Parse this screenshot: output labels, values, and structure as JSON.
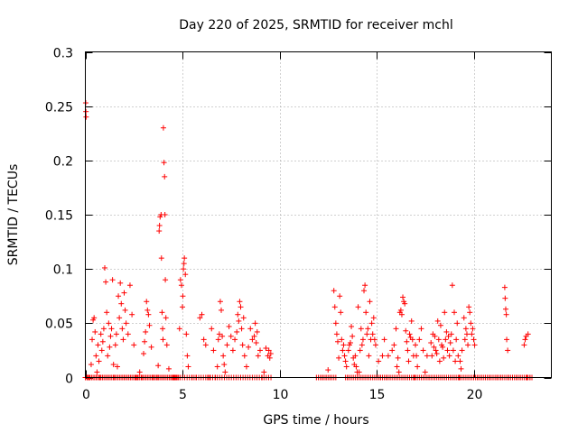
{
  "chart_data": {
    "type": "scatter",
    "title": "Day 220 of 2025, SRMTID for receiver mchl",
    "xlabel": "GPS time / hours",
    "ylabel": "SRMTID / TECUs",
    "xlim": [
      0,
      24
    ],
    "ylim": [
      0,
      0.3
    ],
    "x_ticks": [
      0,
      5,
      10,
      15,
      20
    ],
    "y_ticks": [
      0,
      0.05,
      0.1,
      0.15,
      0.2,
      0.25,
      0.3
    ],
    "x_tick_labels": [
      "0",
      "5",
      "10",
      "15",
      "20"
    ],
    "y_tick_labels": [
      "0",
      "0.05",
      "0.1",
      "0.15",
      "0.2",
      "0.25",
      "0.3"
    ],
    "grid": true,
    "marker": "+",
    "color": "#ff0000",
    "series": [
      {
        "name": "SRMTID",
        "points": [
          [
            0.02,
            0.253
          ],
          [
            0.03,
            0.245
          ],
          [
            0.04,
            0.24
          ],
          [
            0.1,
            0.0
          ],
          [
            0.2,
            0.0
          ],
          [
            0.3,
            0.012
          ],
          [
            0.35,
            0.035
          ],
          [
            0.4,
            0.053
          ],
          [
            0.45,
            0.055
          ],
          [
            0.5,
            0.042
          ],
          [
            0.55,
            0.02
          ],
          [
            0.6,
            0.005
          ],
          [
            0.65,
            0.03
          ],
          [
            0.7,
            0.015
          ],
          [
            0.75,
            0.0
          ],
          [
            0.8,
            0.04
          ],
          [
            0.85,
            0.025
          ],
          [
            0.9,
            0.033
          ],
          [
            0.95,
            0.045
          ],
          [
            1.0,
            0.101
          ],
          [
            1.05,
            0.088
          ],
          [
            1.1,
            0.06
          ],
          [
            1.15,
            0.02
          ],
          [
            1.2,
            0.05
          ],
          [
            1.25,
            0.028
          ],
          [
            1.3,
            0.038
          ],
          [
            1.35,
            0.045
          ],
          [
            1.4,
            0.09
          ],
          [
            1.45,
            0.012
          ],
          [
            1.5,
            0.0
          ],
          [
            1.55,
            0.03
          ],
          [
            1.6,
            0.04
          ],
          [
            1.65,
            0.01
          ],
          [
            1.7,
            0.075
          ],
          [
            1.75,
            0.055
          ],
          [
            1.8,
            0.087
          ],
          [
            1.85,
            0.068
          ],
          [
            1.9,
            0.045
          ],
          [
            1.95,
            0.035
          ],
          [
            2.0,
            0.078
          ],
          [
            2.05,
            0.062
          ],
          [
            2.1,
            0.05
          ],
          [
            2.2,
            0.04
          ],
          [
            2.3,
            0.085
          ],
          [
            2.4,
            0.058
          ],
          [
            2.5,
            0.03
          ],
          [
            2.6,
            0.0
          ],
          [
            2.7,
            0.0
          ],
          [
            2.8,
            0.005
          ],
          [
            2.9,
            0.0
          ],
          [
            3.0,
            0.022
          ],
          [
            3.05,
            0.033
          ],
          [
            3.1,
            0.042
          ],
          [
            3.15,
            0.07
          ],
          [
            3.2,
            0.062
          ],
          [
            3.25,
            0.058
          ],
          [
            3.3,
            0.048
          ],
          [
            3.4,
            0.028
          ],
          [
            3.5,
            0.0
          ],
          [
            3.6,
            0.0
          ],
          [
            3.7,
            0.0
          ],
          [
            3.75,
            0.011
          ],
          [
            3.8,
            0.135
          ],
          [
            3.82,
            0.14
          ],
          [
            3.85,
            0.148
          ],
          [
            3.9,
            0.15
          ],
          [
            3.92,
            0.11
          ],
          [
            3.95,
            0.06
          ],
          [
            3.98,
            0.045
          ],
          [
            4.0,
            0.035
          ],
          [
            4.02,
            0.23
          ],
          [
            4.05,
            0.198
          ],
          [
            4.08,
            0.185
          ],
          [
            4.1,
            0.15
          ],
          [
            4.12,
            0.09
          ],
          [
            4.15,
            0.055
          ],
          [
            4.2,
            0.03
          ],
          [
            4.3,
            0.008
          ],
          [
            4.4,
            0.0
          ],
          [
            4.5,
            0.0
          ],
          [
            4.6,
            0.0
          ],
          [
            4.7,
            0.0
          ],
          [
            4.8,
            0.0
          ],
          [
            4.85,
            0.045
          ],
          [
            4.9,
            0.09
          ],
          [
            4.95,
            0.085
          ],
          [
            5.0,
            0.065
          ],
          [
            5.02,
            0.075
          ],
          [
            5.05,
            0.1
          ],
          [
            5.08,
            0.105
          ],
          [
            5.1,
            0.11
          ],
          [
            5.15,
            0.095
          ],
          [
            5.2,
            0.04
          ],
          [
            5.25,
            0.02
          ],
          [
            5.3,
            0.01
          ],
          [
            5.5,
            0.0
          ],
          [
            5.7,
            0.0
          ],
          [
            5.9,
            0.055
          ],
          [
            6.0,
            0.058
          ],
          [
            6.1,
            0.035
          ],
          [
            6.2,
            0.03
          ],
          [
            6.3,
            0.0
          ],
          [
            6.4,
            0.0
          ],
          [
            6.5,
            0.045
          ],
          [
            6.6,
            0.025
          ],
          [
            6.7,
            0.0
          ],
          [
            6.8,
            0.01
          ],
          [
            6.85,
            0.035
          ],
          [
            6.9,
            0.04
          ],
          [
            6.95,
            0.07
          ],
          [
            7.0,
            0.062
          ],
          [
            7.05,
            0.038
          ],
          [
            7.1,
            0.02
          ],
          [
            7.15,
            0.012
          ],
          [
            7.2,
            0.005
          ],
          [
            7.3,
            0.03
          ],
          [
            7.4,
            0.047
          ],
          [
            7.5,
            0.038
          ],
          [
            7.6,
            0.025
          ],
          [
            7.7,
            0.035
          ],
          [
            7.8,
            0.042
          ],
          [
            7.85,
            0.058
          ],
          [
            7.9,
            0.052
          ],
          [
            7.95,
            0.07
          ],
          [
            8.0,
            0.065
          ],
          [
            8.05,
            0.045
          ],
          [
            8.1,
            0.03
          ],
          [
            8.15,
            0.055
          ],
          [
            8.2,
            0.02
          ],
          [
            8.3,
            0.01
          ],
          [
            8.4,
            0.028
          ],
          [
            8.5,
            0.045
          ],
          [
            8.6,
            0.035
          ],
          [
            8.7,
            0.038
          ],
          [
            8.75,
            0.05
          ],
          [
            8.8,
            0.032
          ],
          [
            8.85,
            0.042
          ],
          [
            8.9,
            0.02
          ],
          [
            9.0,
            0.025
          ],
          [
            9.1,
            0.0
          ],
          [
            9.2,
            0.005
          ],
          [
            9.3,
            0.027
          ],
          [
            9.4,
            0.02
          ],
          [
            9.45,
            0.025
          ],
          [
            9.5,
            0.018
          ],
          [
            9.55,
            0.022
          ],
          [
            12.0,
            0.0
          ],
          [
            12.2,
            0.0
          ],
          [
            12.4,
            0.0
          ],
          [
            12.5,
            0.007
          ],
          [
            12.6,
            0.0
          ],
          [
            12.8,
            0.08
          ],
          [
            12.85,
            0.065
          ],
          [
            12.9,
            0.05
          ],
          [
            12.95,
            0.04
          ],
          [
            13.0,
            0.033
          ],
          [
            13.05,
            0.018
          ],
          [
            13.1,
            0.075
          ],
          [
            13.15,
            0.06
          ],
          [
            13.2,
            0.035
          ],
          [
            13.25,
            0.025
          ],
          [
            13.3,
            0.03
          ],
          [
            13.35,
            0.02
          ],
          [
            13.4,
            0.015
          ],
          [
            13.45,
            0.01
          ],
          [
            13.5,
            0.0
          ],
          [
            13.55,
            0.025
          ],
          [
            13.6,
            0.03
          ],
          [
            13.65,
            0.032
          ],
          [
            13.7,
            0.047
          ],
          [
            13.75,
            0.038
          ],
          [
            13.8,
            0.018
          ],
          [
            13.85,
            0.012
          ],
          [
            13.9,
            0.02
          ],
          [
            13.95,
            0.01
          ],
          [
            14.0,
            0.005
          ],
          [
            14.05,
            0.065
          ],
          [
            14.1,
            0.005
          ],
          [
            14.15,
            0.025
          ],
          [
            14.2,
            0.045
          ],
          [
            14.25,
            0.03
          ],
          [
            14.3,
            0.035
          ],
          [
            14.35,
            0.08
          ],
          [
            14.4,
            0.085
          ],
          [
            14.45,
            0.06
          ],
          [
            14.5,
            0.04
          ],
          [
            14.55,
            0.045
          ],
          [
            14.6,
            0.02
          ],
          [
            14.65,
            0.07
          ],
          [
            14.7,
            0.035
          ],
          [
            14.75,
            0.05
          ],
          [
            14.8,
            0.04
          ],
          [
            14.85,
            0.055
          ],
          [
            14.9,
            0.035
          ],
          [
            14.95,
            0.03
          ],
          [
            15.0,
            0.0
          ],
          [
            15.1,
            0.015
          ],
          [
            15.2,
            0.0
          ],
          [
            15.3,
            0.02
          ],
          [
            15.4,
            0.035
          ],
          [
            15.5,
            0.0
          ],
          [
            15.6,
            0.02
          ],
          [
            15.7,
            0.0
          ],
          [
            15.8,
            0.025
          ],
          [
            15.9,
            0.03
          ],
          [
            16.0,
            0.045
          ],
          [
            16.05,
            0.01
          ],
          [
            16.1,
            0.018
          ],
          [
            16.15,
            0.005
          ],
          [
            16.2,
            0.06
          ],
          [
            16.25,
            0.062
          ],
          [
            16.3,
            0.058
          ],
          [
            16.35,
            0.074
          ],
          [
            16.4,
            0.07
          ],
          [
            16.45,
            0.068
          ],
          [
            16.5,
            0.043
          ],
          [
            16.55,
            0.033
          ],
          [
            16.6,
            0.025
          ],
          [
            16.65,
            0.015
          ],
          [
            16.7,
            0.04
          ],
          [
            16.75,
            0.037
          ],
          [
            16.8,
            0.052
          ],
          [
            16.85,
            0.035
          ],
          [
            16.9,
            0.02
          ],
          [
            16.95,
            0.0
          ],
          [
            17.0,
            0.03
          ],
          [
            17.05,
            0.02
          ],
          [
            17.1,
            0.01
          ],
          [
            17.2,
            0.035
          ],
          [
            17.3,
            0.045
          ],
          [
            17.4,
            0.025
          ],
          [
            17.5,
            0.005
          ],
          [
            17.6,
            0.02
          ],
          [
            17.7,
            0.0
          ],
          [
            17.8,
            0.032
          ],
          [
            17.85,
            0.02
          ],
          [
            17.9,
            0.04
          ],
          [
            17.95,
            0.028
          ],
          [
            18.0,
            0.038
          ],
          [
            18.05,
            0.025
          ],
          [
            18.1,
            0.022
          ],
          [
            18.15,
            0.052
          ],
          [
            18.2,
            0.035
          ],
          [
            18.25,
            0.015
          ],
          [
            18.3,
            0.048
          ],
          [
            18.35,
            0.03
          ],
          [
            18.4,
            0.028
          ],
          [
            18.45,
            0.018
          ],
          [
            18.5,
            0.06
          ],
          [
            18.55,
            0.035
          ],
          [
            18.6,
            0.042
          ],
          [
            18.65,
            0.025
          ],
          [
            18.7,
            0.038
          ],
          [
            18.75,
            0.02
          ],
          [
            18.8,
            0.032
          ],
          [
            18.85,
            0.04
          ],
          [
            18.9,
            0.085
          ],
          [
            18.95,
            0.025
          ],
          [
            19.0,
            0.06
          ],
          [
            19.05,
            0.015
          ],
          [
            19.1,
            0.035
          ],
          [
            19.15,
            0.05
          ],
          [
            19.2,
            0.02
          ],
          [
            19.25,
            0.0
          ],
          [
            19.3,
            0.015
          ],
          [
            19.35,
            0.008
          ],
          [
            19.4,
            0.025
          ],
          [
            19.5,
            0.055
          ],
          [
            19.55,
            0.035
          ],
          [
            19.6,
            0.045
          ],
          [
            19.65,
            0.04
          ],
          [
            19.7,
            0.03
          ],
          [
            19.75,
            0.065
          ],
          [
            19.8,
            0.06
          ],
          [
            19.85,
            0.05
          ],
          [
            19.9,
            0.04
          ],
          [
            19.95,
            0.045
          ],
          [
            20.0,
            0.035
          ],
          [
            20.05,
            0.03
          ],
          [
            20.2,
            0.0
          ],
          [
            20.4,
            0.0
          ],
          [
            20.6,
            0.0
          ],
          [
            20.8,
            0.0
          ],
          [
            21.0,
            0.0
          ],
          [
            21.2,
            0.0
          ],
          [
            21.4,
            0.0
          ],
          [
            21.6,
            0.083
          ],
          [
            21.62,
            0.073
          ],
          [
            21.65,
            0.063
          ],
          [
            21.68,
            0.058
          ],
          [
            21.7,
            0.035
          ],
          [
            21.75,
            0.025
          ],
          [
            21.8,
            0.0
          ],
          [
            22.0,
            0.0
          ],
          [
            22.2,
            0.0
          ],
          [
            22.4,
            0.0
          ],
          [
            22.6,
            0.03
          ],
          [
            22.65,
            0.035
          ],
          [
            22.7,
            0.038
          ],
          [
            22.75,
            0.0
          ],
          [
            22.8,
            0.04
          ],
          [
            22.9,
            0.0
          ]
        ]
      }
    ],
    "zero_runs": [
      [
        0.0,
        4.7,
        0.08
      ],
      [
        4.4,
        9.6,
        0.12
      ],
      [
        11.9,
        12.9,
        0.1
      ],
      [
        13.4,
        23.0,
        0.1
      ]
    ]
  }
}
